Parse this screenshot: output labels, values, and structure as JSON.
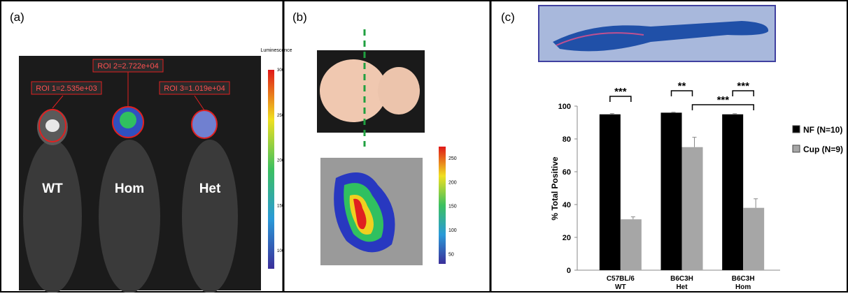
{
  "panel_a": {
    "label": "(a)",
    "roi_labels": [
      "ROI 1=2.535e+03",
      "ROI 2=2.722e+04",
      "ROI 3=1.019e+04"
    ],
    "mouse_labels": [
      "WT",
      "Hom",
      "Het"
    ],
    "colorbar_title": "Luminescence",
    "colorbar_ticks": [
      300,
      250,
      200,
      150,
      100
    ]
  },
  "panel_b": {
    "label": "(b)",
    "colorbar_ticks": [
      250,
      200,
      150,
      100,
      50
    ]
  },
  "chart_data": {
    "type": "bar",
    "panel_label": "(c)",
    "y_label": "% Total Positive",
    "categories": [
      [
        "C57BL/6",
        "WT"
      ],
      [
        "B6C3H",
        "Het"
      ],
      [
        "B6C3H",
        "Hom"
      ]
    ],
    "series": [
      {
        "name": "NF (N=10)",
        "color": "#000000",
        "values": [
          95,
          96,
          95
        ],
        "errors": [
          0.5,
          0.3,
          0.4
        ]
      },
      {
        "name": "Cup (N=9)",
        "color": "#a6a6a6",
        "values": [
          31,
          75,
          38
        ],
        "errors": [
          1.5,
          6,
          5.5
        ]
      }
    ],
    "ylim": [
      0,
      100
    ],
    "yticks": [
      0,
      20,
      40,
      60,
      80,
      100
    ],
    "annotations": [
      "***",
      "**",
      "***",
      "***"
    ]
  }
}
